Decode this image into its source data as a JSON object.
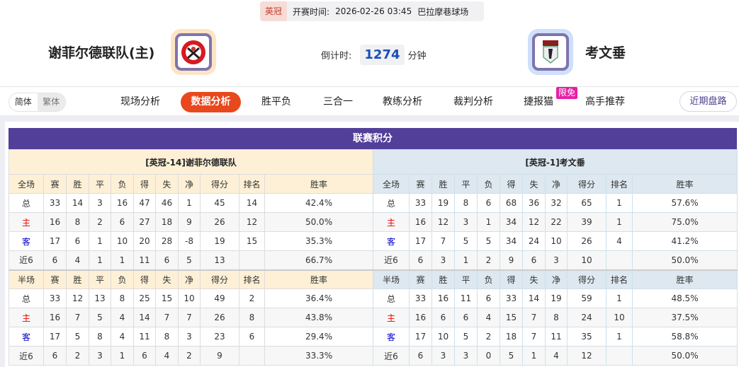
{
  "match": {
    "league": "英冠",
    "time_label": "开赛时间:",
    "time": "2026-02-26 03:45",
    "venue": "巴拉摩巷球场"
  },
  "home": {
    "name": "谢菲尔德联队(主)",
    "logo": "sheffield-united-crest"
  },
  "away": {
    "name": "考文垂",
    "logo": "coventry-city-crest"
  },
  "countdown": {
    "label": "倒计时:",
    "value": "1274",
    "unit": "分钟"
  },
  "lang": {
    "simplified": "简体",
    "traditional": "繁体"
  },
  "nav": {
    "items": [
      "现场分析",
      "数据分析",
      "胜平负",
      "三合一",
      "教练分析",
      "裁判分析",
      "捷报猫",
      "高手推荐"
    ],
    "active": "数据分析",
    "badge": "限免",
    "recent": "近期盘路"
  },
  "colors": {
    "accent": "#e8481c",
    "title_bar": "#523f9a",
    "home_red": "#e00000",
    "away_blue": "#0000cc"
  },
  "standings": {
    "title": "联赛积分",
    "columns": [
      "赛",
      "胜",
      "平",
      "负",
      "得",
      "失",
      "净",
      "得分",
      "排名",
      "胜率"
    ],
    "home": {
      "team": "[英冠-14]谢菲尔德联队",
      "full": {
        "label": "全场",
        "rows": [
          [
            "总",
            "33",
            "14",
            "3",
            "16",
            "47",
            "46",
            "1",
            "45",
            "14",
            "42.4%"
          ],
          [
            "主",
            "16",
            "8",
            "2",
            "6",
            "27",
            "18",
            "9",
            "26",
            "12",
            "50.0%"
          ],
          [
            "客",
            "17",
            "6",
            "1",
            "10",
            "20",
            "28",
            "-8",
            "19",
            "15",
            "35.3%"
          ],
          [
            "近6",
            "6",
            "4",
            "1",
            "1",
            "11",
            "6",
            "5",
            "13",
            "",
            "66.7%"
          ]
        ]
      },
      "half": {
        "label": "半场",
        "rows": [
          [
            "总",
            "33",
            "12",
            "13",
            "8",
            "25",
            "15",
            "10",
            "49",
            "2",
            "36.4%"
          ],
          [
            "主",
            "16",
            "7",
            "5",
            "4",
            "14",
            "7",
            "7",
            "26",
            "8",
            "43.8%"
          ],
          [
            "客",
            "17",
            "5",
            "8",
            "4",
            "11",
            "8",
            "3",
            "23",
            "6",
            "29.4%"
          ],
          [
            "近6",
            "6",
            "2",
            "3",
            "1",
            "6",
            "4",
            "2",
            "9",
            "",
            "33.3%"
          ]
        ]
      }
    },
    "away": {
      "team": "[英冠-1]考文垂",
      "full": {
        "label": "全场",
        "rows": [
          [
            "总",
            "33",
            "19",
            "8",
            "6",
            "68",
            "36",
            "32",
            "65",
            "1",
            "57.6%"
          ],
          [
            "主",
            "16",
            "12",
            "3",
            "1",
            "34",
            "12",
            "22",
            "39",
            "1",
            "75.0%"
          ],
          [
            "客",
            "17",
            "7",
            "5",
            "5",
            "34",
            "24",
            "10",
            "26",
            "4",
            "41.2%"
          ],
          [
            "近6",
            "6",
            "3",
            "1",
            "2",
            "9",
            "6",
            "3",
            "10",
            "",
            "50.0%"
          ]
        ]
      },
      "half": {
        "label": "半场",
        "rows": [
          [
            "总",
            "33",
            "16",
            "11",
            "6",
            "33",
            "14",
            "19",
            "59",
            "1",
            "48.5%"
          ],
          [
            "主",
            "16",
            "6",
            "6",
            "4",
            "15",
            "7",
            "8",
            "24",
            "10",
            "37.5%"
          ],
          [
            "客",
            "17",
            "10",
            "5",
            "2",
            "18",
            "7",
            "11",
            "35",
            "1",
            "58.8%"
          ],
          [
            "近6",
            "6",
            "3",
            "3",
            "0",
            "5",
            "1",
            "4",
            "12",
            "",
            "50.0%"
          ]
        ]
      }
    }
  }
}
